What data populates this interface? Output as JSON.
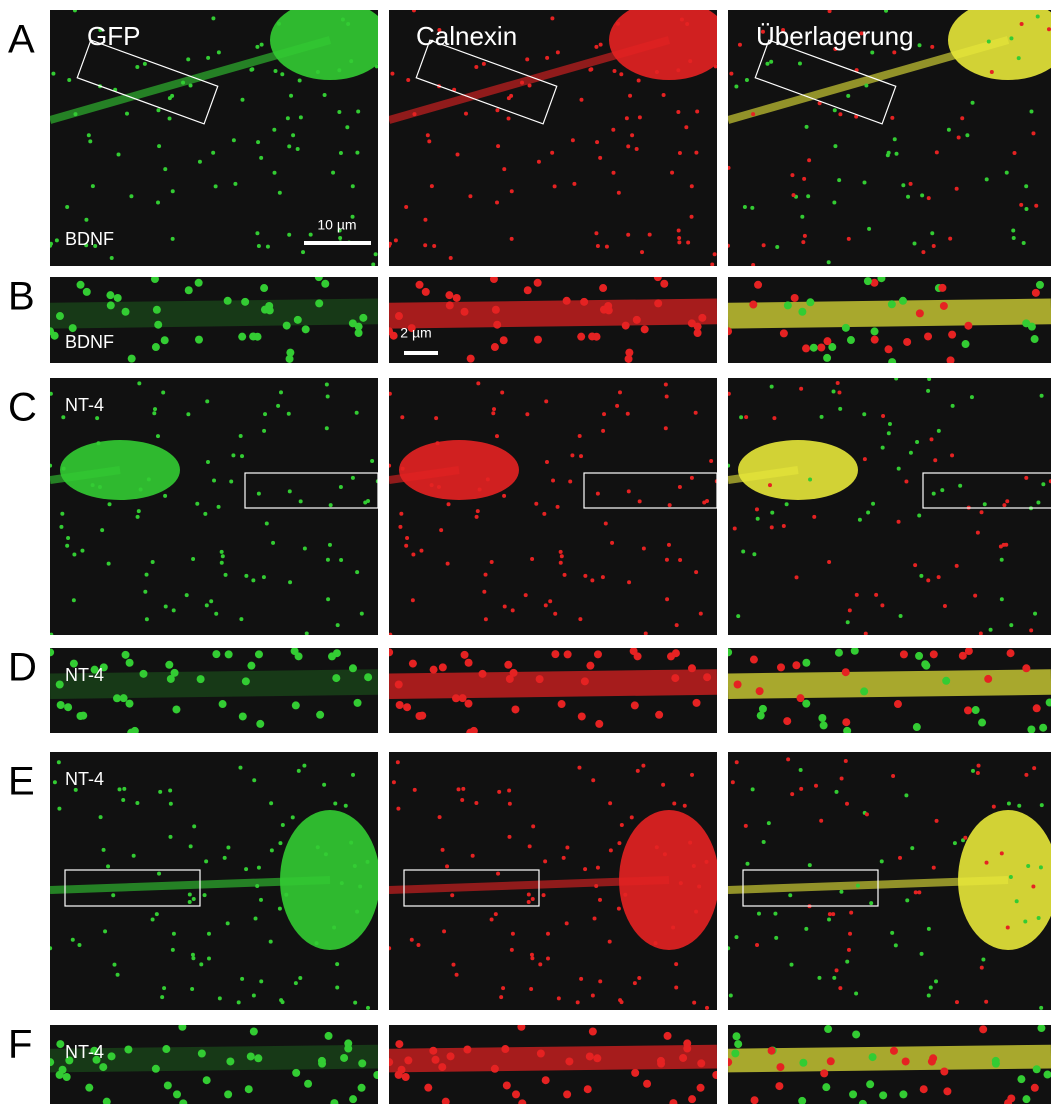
{
  "columns": [
    "GFP",
    "Calnexin",
    "Überlagerung"
  ],
  "rows": [
    {
      "letter": "A",
      "label": "BDNF"
    },
    {
      "letter": "B",
      "label": "BDNF"
    },
    {
      "letter": "C",
      "label": "NT-4"
    },
    {
      "letter": "D",
      "label": "NT-4"
    },
    {
      "letter": "E",
      "label": "NT-4"
    },
    {
      "letter": "F",
      "label": "NT-4"
    }
  ],
  "scale_bars": [
    "10 µm",
    "2 µm"
  ]
}
